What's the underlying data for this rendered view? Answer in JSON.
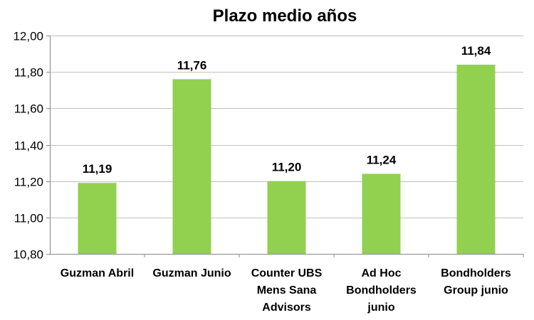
{
  "chart_data": {
    "type": "bar",
    "title": "Plazo medio años",
    "xlabel": "",
    "ylabel": "",
    "categories": [
      "Guzman Abril",
      "Guzman Junio",
      "Counter UBS Mens Sana Advisors",
      "Ad Hoc Bondholders junio",
      "Bondholders Group junio"
    ],
    "category_lines": [
      [
        "Guzman Abril"
      ],
      [
        "Guzman Junio"
      ],
      [
        "Counter UBS",
        "Mens Sana",
        "Advisors"
      ],
      [
        "Ad Hoc",
        "Bondholders",
        "junio"
      ],
      [
        "Bondholders",
        "Group junio"
      ]
    ],
    "values": [
      11.19,
      11.76,
      11.2,
      11.24,
      11.84
    ],
    "data_labels": [
      "11,19",
      "11,76",
      "11,20",
      "11,24",
      "11,84"
    ],
    "ylim": [
      10.8,
      12.0
    ],
    "yticks": [
      10.8,
      11.0,
      11.2,
      11.4,
      11.6,
      11.8,
      12.0
    ],
    "ytick_labels": [
      "10,80",
      "11,00",
      "11,20",
      "11,40",
      "11,60",
      "11,80",
      "12,00"
    ],
    "grid": true,
    "legend": "none",
    "bar_color": "#92d050"
  }
}
